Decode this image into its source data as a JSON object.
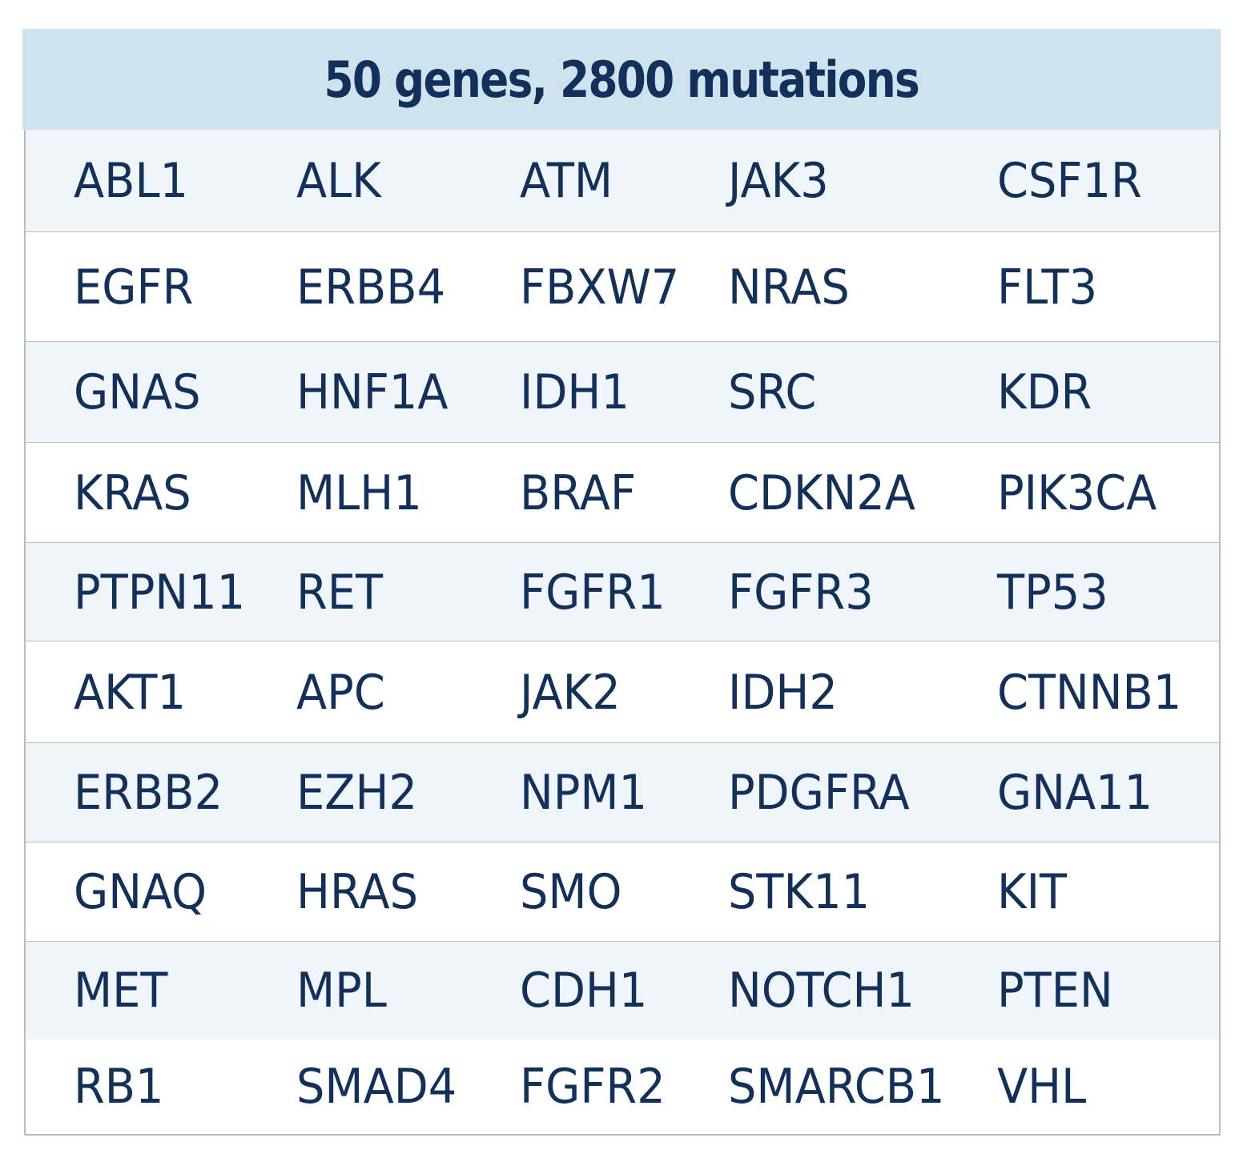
{
  "header": {
    "title": "50 genes, 2800 mutations"
  },
  "colors": {
    "header_background": "#cee3ee",
    "shaded_row": "#eff5fa",
    "text": "#12305a",
    "grid_line": "#b9bcbf"
  },
  "genes": {
    "rows": [
      [
        "ABL1",
        "ALK",
        "ATM",
        "JAK3",
        "CSF1R"
      ],
      [
        "EGFR",
        "ERBB4",
        "FBXW7",
        "NRAS",
        "FLT3"
      ],
      [
        "GNAS",
        "HNF1A",
        "IDH1",
        "SRC",
        "KDR"
      ],
      [
        "KRAS",
        "MLH1",
        "BRAF",
        "CDKN2A",
        "PIK3CA"
      ],
      [
        "PTPN11",
        "RET",
        "FGFR1",
        "FGFR3",
        "TP53"
      ],
      [
        "AKT1",
        "APC",
        "JAK2",
        "IDH2",
        "CTNNB1"
      ],
      [
        "ERBB2",
        "EZH2",
        "NPM1",
        "PDGFRA",
        "GNA11"
      ],
      [
        "GNAQ",
        "HRAS",
        "SMO",
        "STK11",
        "KIT"
      ],
      [
        "MET",
        "MPL",
        "CDH1",
        "NOTCH1",
        "PTEN"
      ],
      [
        "RB1",
        "SMAD4",
        "FGFR2",
        "SMARCB1",
        "VHL"
      ]
    ]
  }
}
